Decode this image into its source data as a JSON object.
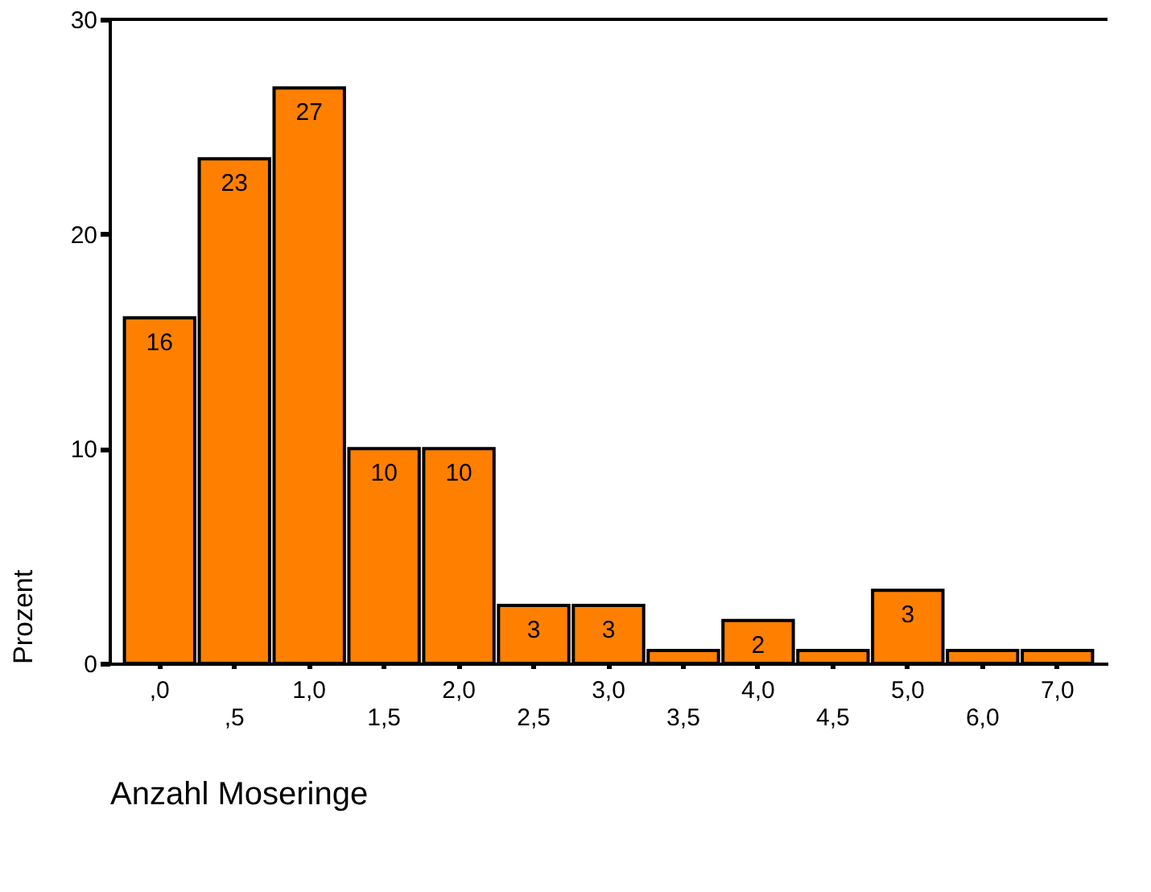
{
  "chart_data": {
    "type": "bar",
    "xlabel": "Anzahl Moseringe",
    "ylabel": "Prozent",
    "categories": [
      ",0",
      ",5",
      "1,0",
      "1,5",
      "2,0",
      "2,5",
      "3,0",
      "3,5",
      "4,0",
      "4,5",
      "5,0",
      "6,0",
      "7,0"
    ],
    "values": [
      16.1,
      23.5,
      26.8,
      10.0,
      10.0,
      2.7,
      2.7,
      0.6,
      2.0,
      0.6,
      3.4,
      0.6,
      0.6
    ],
    "value_labels": [
      "16",
      "23",
      "27",
      "10",
      "10",
      "3",
      "3",
      null,
      "2",
      null,
      "3",
      null,
      null
    ],
    "color": "#ff8000",
    "ylim": [
      0,
      30
    ],
    "yticks": [
      0,
      10,
      20,
      30
    ],
    "grid": false
  }
}
